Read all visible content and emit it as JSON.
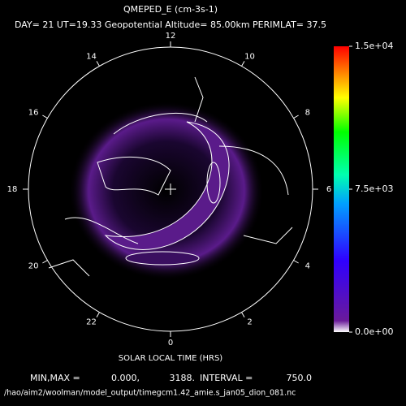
{
  "header": {
    "title": "QMEPED_E (cm-3s-1)",
    "subtitle": "DAY= 21 UT=19.33 Geopotential Altitude= 85.00km PERIMLAT= 37.5"
  },
  "polar_plot": {
    "hour_labels": [
      12,
      14,
      16,
      18,
      20,
      22,
      0,
      2,
      4,
      6,
      8,
      10
    ],
    "axis_label": "SOLAR LOCAL TIME (HRS)"
  },
  "colorbar": {
    "lim": [
      0,
      15000
    ],
    "ticks": [
      {
        "value": 0,
        "label": "0.0e+00"
      },
      {
        "value": 7500,
        "label": "7.5e+03"
      },
      {
        "value": 15000,
        "label": "1.5e+04"
      }
    ]
  },
  "footer": {
    "stats": [
      "MIN,MAX =",
      "0.000,",
      "3188.",
      "INTERVAL =",
      "750.0"
    ],
    "path": "/hao/aim2/woolman/model_output/timegcm1.42_amie.s_jan05_dion_081.nc"
  }
}
